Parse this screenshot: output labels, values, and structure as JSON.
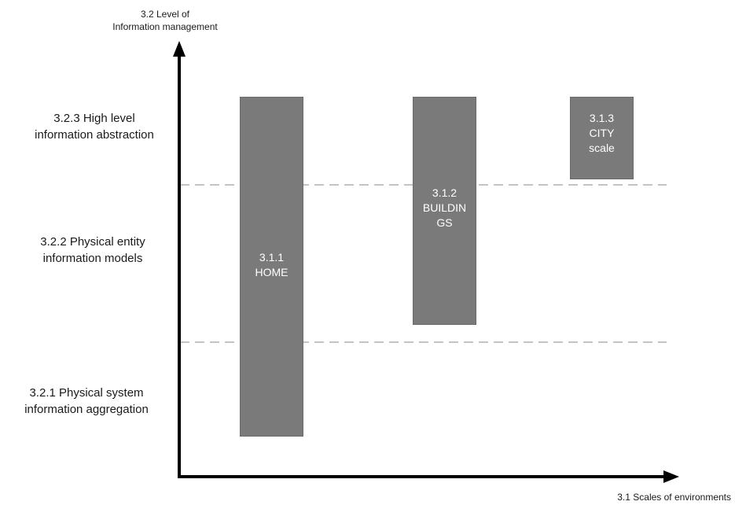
{
  "diagram": {
    "y_axis_title_line1": "3.2 Level of",
    "y_axis_title_line2": "Information management",
    "x_axis_title": "3.1 Scales of environments",
    "levels": [
      {
        "line1": "3.2.3 High level",
        "line2": "information abstraction"
      },
      {
        "line1": "3.2.2 Physical entity",
        "line2": "information models"
      },
      {
        "line1": "3.2.1 Physical system",
        "line2": "information aggregation"
      }
    ],
    "scales": [
      {
        "line1": "3.1.1",
        "line2": "HOME",
        "line3": ""
      },
      {
        "line1": "3.1.2",
        "line2": "BUILDIN",
        "line3": "GS"
      },
      {
        "line1": "3.1.3",
        "line2": "CITY",
        "line3": "scale"
      }
    ],
    "colors": {
      "bar_fill": "#7a7a7a",
      "axis": "#000000",
      "divider": "#b0b0b0",
      "bar_text": "#ffffff"
    }
  }
}
